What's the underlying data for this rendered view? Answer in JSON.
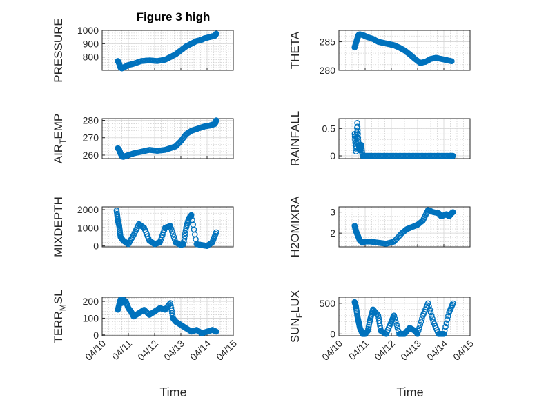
{
  "figure_title": "Figure 3 high",
  "marker_color": "#0072BD",
  "chart_data": [
    {
      "type": "scatter",
      "ylabel": "PRESSURE",
      "ylim": [
        700,
        1000
      ],
      "yticks": [
        800,
        900,
        1000
      ],
      "xlim": [
        0,
        5
      ],
      "series": [
        {
          "name": "PRESSURE",
          "x": [
            0.6,
            0.65,
            0.7,
            0.75,
            0.8,
            0.9,
            1.0,
            1.2,
            1.5,
            1.8,
            2.1,
            2.4,
            2.6,
            2.8,
            3.0,
            3.2,
            3.4,
            3.6,
            3.8,
            3.9,
            4.1,
            4.2,
            4.3,
            4.35
          ],
          "y": [
            770,
            750,
            720,
            715,
            720,
            730,
            740,
            750,
            770,
            775,
            770,
            780,
            800,
            820,
            850,
            880,
            900,
            920,
            930,
            940,
            950,
            955,
            960,
            975
          ]
        }
      ]
    },
    {
      "type": "scatter",
      "ylabel": "THETA",
      "ylim": [
        280,
        287
      ],
      "yticks": [
        280,
        285
      ],
      "xlim": [
        0,
        5
      ],
      "series": [
        {
          "name": "THETA",
          "x": [
            0.6,
            0.65,
            0.7,
            0.75,
            0.8,
            0.9,
            1.0,
            1.1,
            1.3,
            1.5,
            1.7,
            1.9,
            2.1,
            2.3,
            2.5,
            2.7,
            2.9,
            3.1,
            3.3,
            3.5,
            3.7,
            3.9,
            4.1,
            4.3
          ],
          "y": [
            284,
            284.8,
            285.5,
            286.2,
            286.3,
            286.2,
            286.0,
            285.8,
            285.5,
            285.0,
            284.8,
            284.6,
            284.4,
            284.0,
            283.5,
            282.8,
            282.0,
            281.3,
            281.5,
            282.0,
            282.2,
            282.0,
            281.8,
            281.6
          ]
        }
      ]
    },
    {
      "type": "scatter",
      "ylabel": "AIR_TEMP",
      "ylabel_main": "AIR",
      "ylabel_sub": "T",
      "ylabel_rest": "EMP",
      "ylim": [
        258,
        281
      ],
      "yticks": [
        260,
        270,
        280
      ],
      "xlim": [
        0,
        5
      ],
      "series": [
        {
          "name": "AIR_TEMP",
          "x": [
            0.6,
            0.65,
            0.7,
            0.75,
            0.8,
            0.9,
            1.0,
            1.2,
            1.5,
            1.8,
            2.1,
            2.4,
            2.6,
            2.8,
            3.0,
            3.2,
            3.4,
            3.6,
            3.8,
            3.9,
            4.1,
            4.2,
            4.3,
            4.35
          ],
          "y": [
            264,
            263,
            261,
            259.5,
            259,
            259.5,
            260,
            261,
            262,
            263,
            262.5,
            263,
            264,
            265,
            268,
            272,
            274,
            275,
            276,
            276.5,
            277,
            277.5,
            278,
            280
          ]
        }
      ]
    },
    {
      "type": "scatter",
      "ylabel": "RAINFALL",
      "ylim": [
        -0.05,
        0.68
      ],
      "yticks": [
        0,
        0.5
      ],
      "xlim": [
        0,
        5
      ],
      "series": [
        {
          "name": "RAINFALL",
          "x": [
            0.6,
            0.65,
            0.7,
            0.75,
            0.8,
            0.85,
            0.9,
            1.0,
            1.2,
            1.5,
            1.8,
            2.1,
            2.4,
            2.7,
            3.0,
            3.3,
            3.6,
            3.9,
            4.2,
            4.35
          ],
          "y": [
            0.4,
            0.08,
            0.6,
            0.2,
            0.1,
            0.2,
            0,
            0,
            0,
            0,
            0,
            0,
            0,
            0,
            0,
            0,
            0,
            0,
            0,
            0
          ]
        }
      ]
    },
    {
      "type": "scatter",
      "ylabel": "MIXDEPTH",
      "ylim": [
        -50,
        2150
      ],
      "yticks": [
        0,
        1000,
        2000
      ],
      "xlim": [
        0,
        5
      ],
      "series": [
        {
          "name": "MIXDEPTH",
          "x": [
            0.55,
            0.6,
            0.65,
            0.7,
            0.8,
            1.0,
            1.2,
            1.4,
            1.6,
            1.8,
            2.0,
            2.2,
            2.4,
            2.6,
            2.8,
            3.0,
            3.1,
            3.2,
            3.3,
            3.4,
            3.6,
            3.8,
            4.0,
            4.2,
            4.35
          ],
          "y": [
            1950,
            1400,
            1100,
            500,
            300,
            100,
            600,
            1200,
            1000,
            300,
            100,
            200,
            1000,
            1100,
            200,
            50,
            100,
            1000,
            1500,
            1700,
            100,
            50,
            0,
            200,
            750
          ]
        }
      ]
    },
    {
      "type": "scatter",
      "ylabel": "H2OMIXRA",
      "ylim": [
        1.35,
        3.25
      ],
      "yticks": [
        2,
        3
      ],
      "xlim": [
        0,
        5
      ],
      "series": [
        {
          "name": "H2OMIXRA",
          "x": [
            0.6,
            0.65,
            0.7,
            0.75,
            0.8,
            0.9,
            1.0,
            1.2,
            1.5,
            1.8,
            2.1,
            2.4,
            2.6,
            2.8,
            3.0,
            3.2,
            3.4,
            3.6,
            3.8,
            3.9,
            4.1,
            4.2,
            4.3,
            4.35
          ],
          "y": [
            2.35,
            2.1,
            1.95,
            1.8,
            1.65,
            1.55,
            1.6,
            1.6,
            1.55,
            1.5,
            1.6,
            2.0,
            2.2,
            2.3,
            2.4,
            2.6,
            3.1,
            3.0,
            2.95,
            2.8,
            2.9,
            2.8,
            2.95,
            3.0
          ]
        }
      ]
    },
    {
      "type": "scatter",
      "ylabel": "TERR_MSL",
      "ylabel_main": "TERR",
      "ylabel_sub": "M",
      "ylabel_rest": "SL",
      "ylim": [
        -5,
        225
      ],
      "yticks": [
        0,
        100,
        200
      ],
      "xlim": [
        0,
        5
      ],
      "series": [
        {
          "name": "TERR_MSL",
          "x": [
            0.6,
            0.65,
            0.7,
            0.75,
            0.8,
            0.9,
            1.0,
            1.1,
            1.2,
            1.4,
            1.6,
            1.8,
            2.0,
            2.2,
            2.4,
            2.6,
            2.7,
            2.8,
            3.0,
            3.2,
            3.4,
            3.6,
            3.8,
            4.0,
            4.2,
            4.35
          ],
          "y": [
            150,
            180,
            210,
            190,
            210,
            200,
            160,
            140,
            110,
            130,
            150,
            120,
            140,
            160,
            150,
            190,
            100,
            80,
            60,
            40,
            20,
            30,
            10,
            20,
            30,
            20
          ]
        }
      ]
    },
    {
      "type": "scatter",
      "ylabel": "SUN_FLUX",
      "ylabel_main": "SUN",
      "ylabel_sub": "F",
      "ylabel_rest": "LUX",
      "ylim": [
        -30,
        600
      ],
      "yticks": [
        0,
        500
      ],
      "xlim": [
        0,
        5
      ],
      "series": [
        {
          "name": "SUN_FLUX",
          "x": [
            0.6,
            0.65,
            0.7,
            0.75,
            0.8,
            0.9,
            1.0,
            1.1,
            1.2,
            1.3,
            1.5,
            1.6,
            1.8,
            2.0,
            2.1,
            2.3,
            2.5,
            2.7,
            2.9,
            3.0,
            3.2,
            3.4,
            3.6,
            3.8,
            4.0,
            4.2,
            4.35
          ],
          "y": [
            520,
            450,
            300,
            200,
            100,
            0,
            0,
            50,
            250,
            400,
            300,
            50,
            0,
            200,
            300,
            0,
            0,
            100,
            50,
            0,
            300,
            500,
            200,
            0,
            0,
            350,
            500
          ]
        }
      ]
    }
  ],
  "x_tick_labels": [
    "04/10",
    "04/11",
    "04/12",
    "04/13",
    "04/14",
    "04/15"
  ],
  "x_label": "Time"
}
